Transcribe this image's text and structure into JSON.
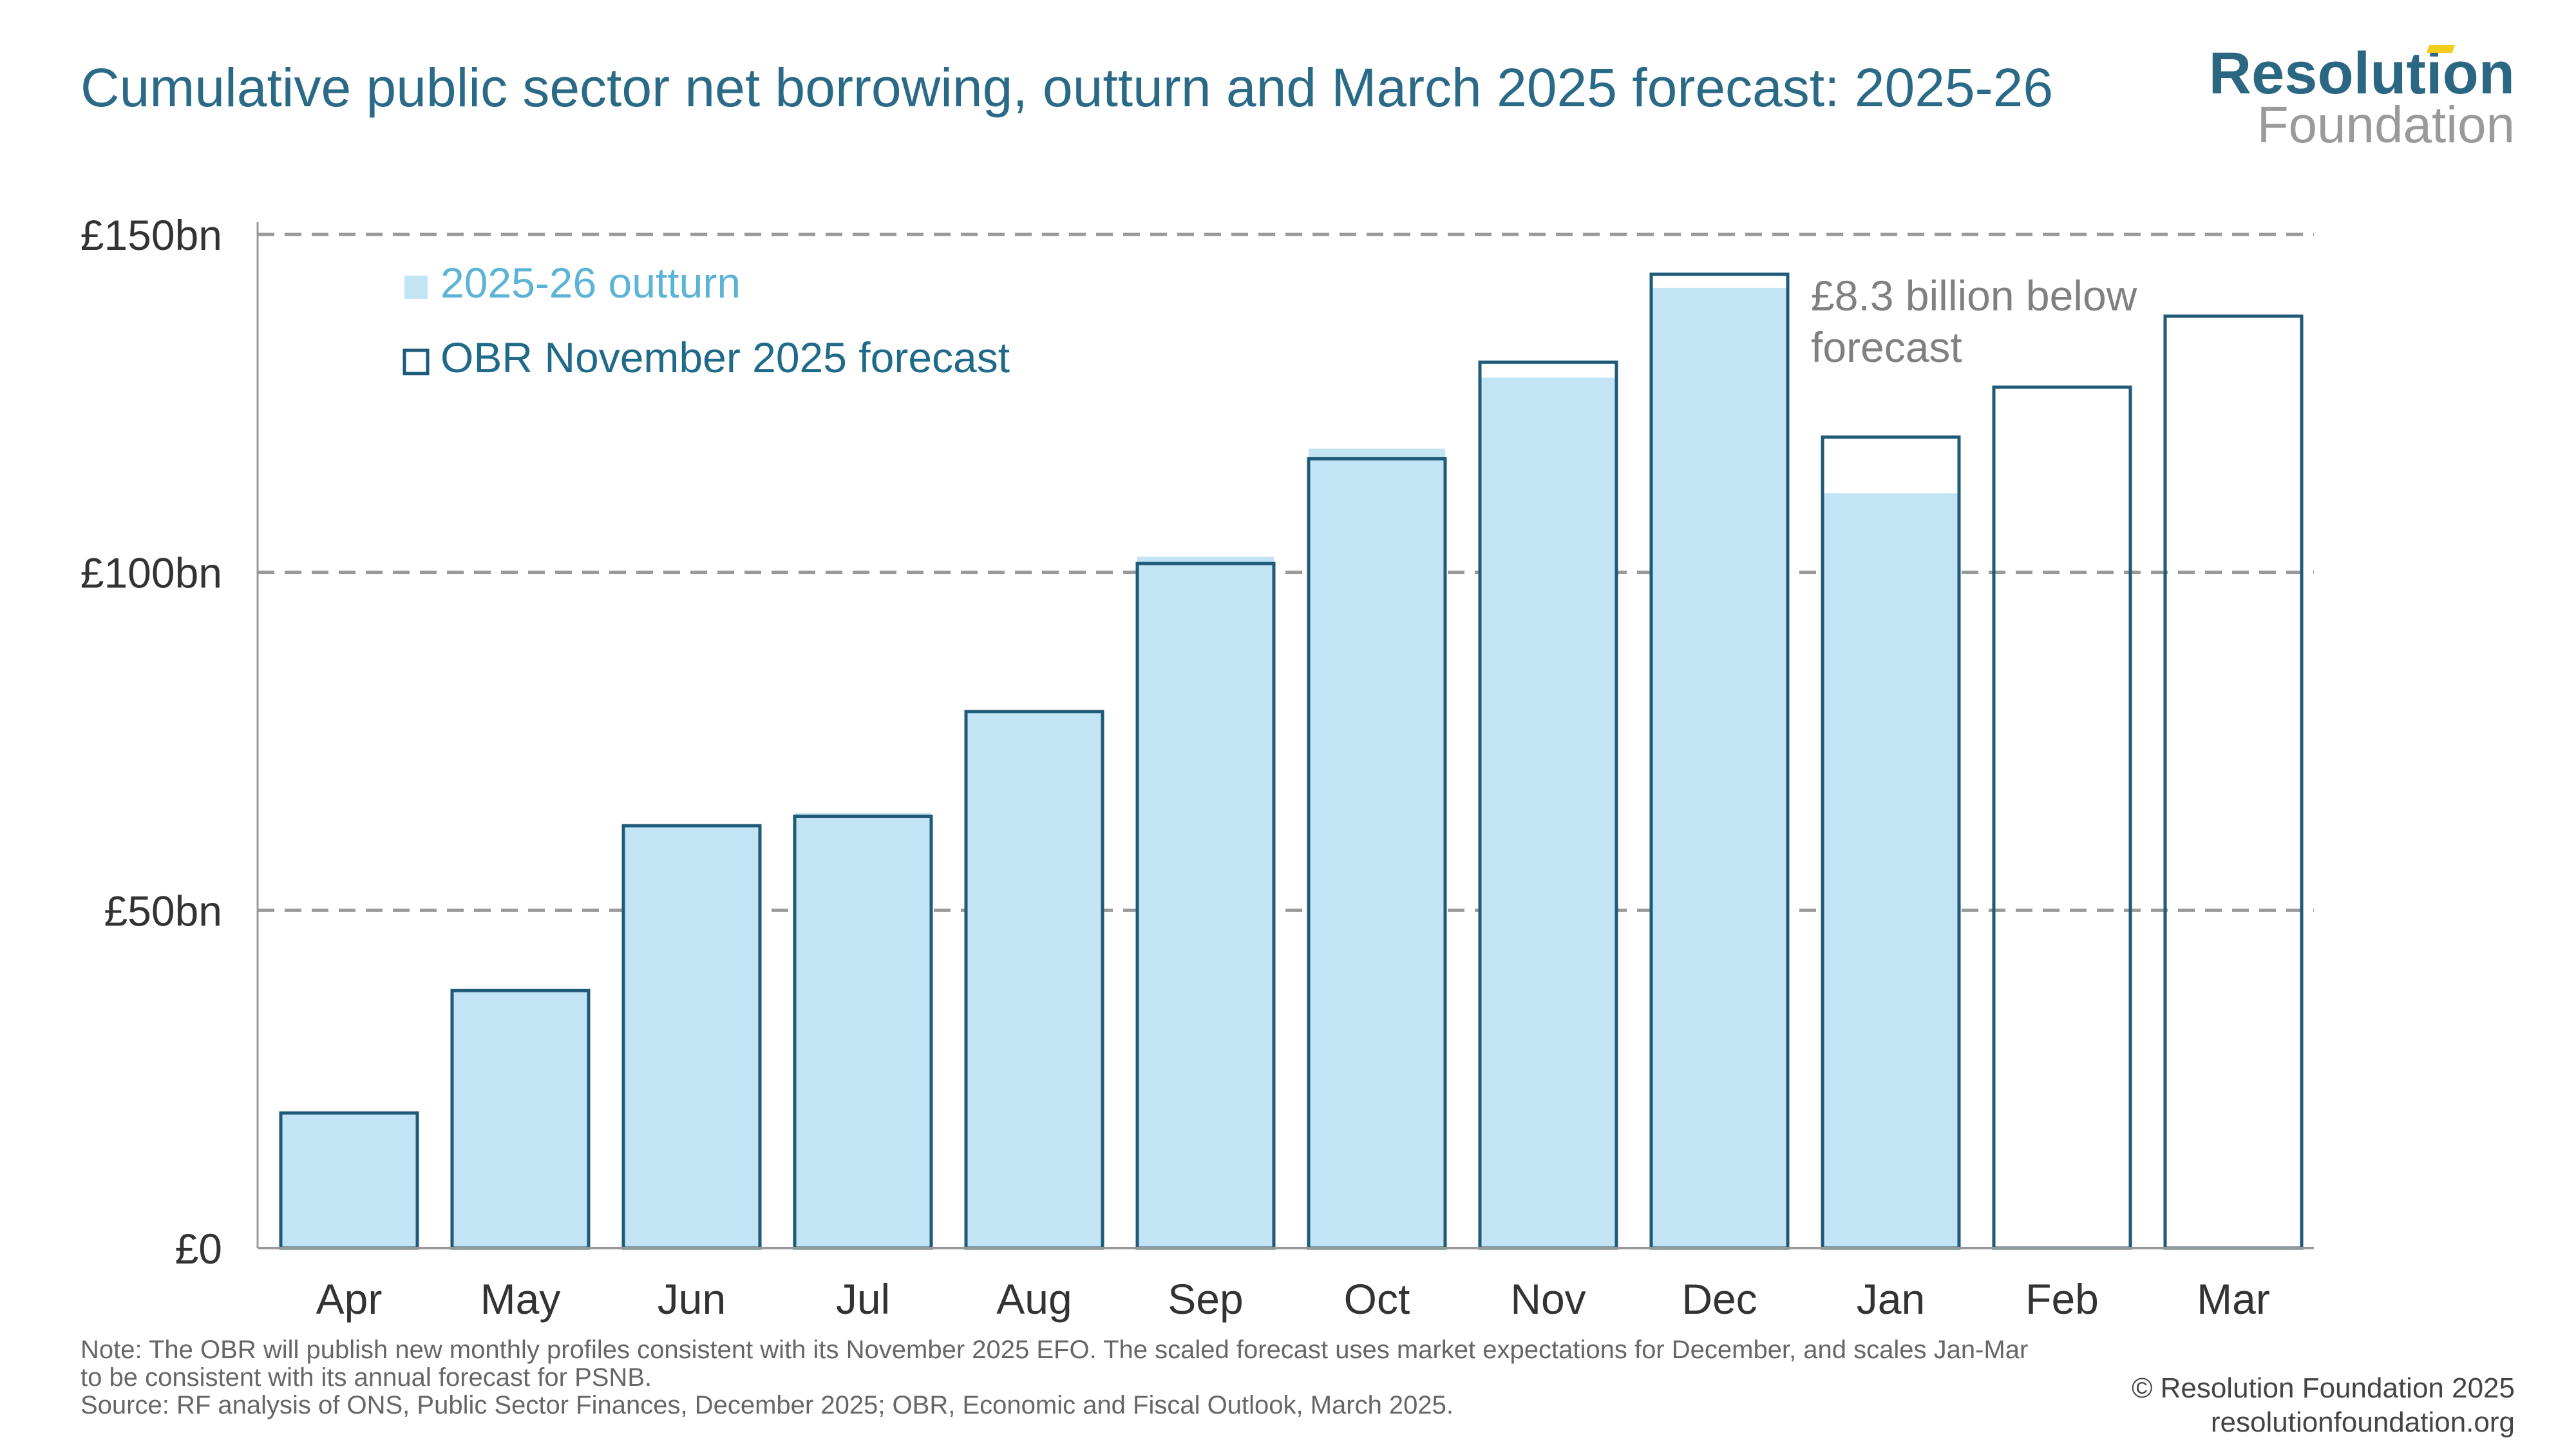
{
  "title": "Cumulative public sector net borrowing, outturn and March 2025 forecast: 2025-26",
  "logo": {
    "line1": "Resolution",
    "line2": "Foundation"
  },
  "chart_data": {
    "type": "bar",
    "title": "Cumulative public sector net borrowing, outturn and March 2025 forecast: 2025-26",
    "xlabel": "",
    "ylabel": "",
    "ylim": [
      0,
      150
    ],
    "yticks": [
      0,
      50,
      100,
      150
    ],
    "ytick_labels": [
      "£0",
      "£50bn",
      "£100bn",
      "£150bn"
    ],
    "grid": "horizontal dashed",
    "legend_position": "top-left",
    "categories": [
      "Apr",
      "May",
      "Jun",
      "Jul",
      "Aug",
      "Sep",
      "Oct",
      "Nov",
      "Dec",
      "Jan",
      "Feb",
      "Mar"
    ],
    "series": [
      {
        "name": "2025-26 outturn",
        "style": "filled",
        "color": "#c2e4f4",
        "values": [
          20,
          38.1,
          62.5,
          64.4,
          79.4,
          102.3,
          118.3,
          128.8,
          142.1,
          111.7,
          null,
          null
        ]
      },
      {
        "name": "OBR November 2025 forecast",
        "style": "outline",
        "color": "#1f5a78",
        "values": [
          20,
          38.1,
          62.5,
          63.9,
          79.4,
          101.3,
          116.8,
          131.1,
          144.1,
          120.0,
          127.4,
          137.9
        ]
      }
    ],
    "annotations": [
      {
        "text_line1": "£8.3 billion below",
        "text_line2": "forecast",
        "category": "Jan"
      }
    ]
  },
  "notes": {
    "line1": "Note: The OBR will publish new monthly profiles consistent with its November 2025 EFO. The scaled forecast uses market expectations for December, and scales Jan-Mar",
    "line2": "to be consistent with its annual forecast for PSNB.",
    "line3": "Source: RF analysis of ONS, Public Sector Finances, December 2025; OBR, Economic and Fiscal Outlook, March 2025."
  },
  "credit": {
    "line1": "© Resolution Foundation 2025",
    "line2": "resolutionfoundation.org"
  }
}
